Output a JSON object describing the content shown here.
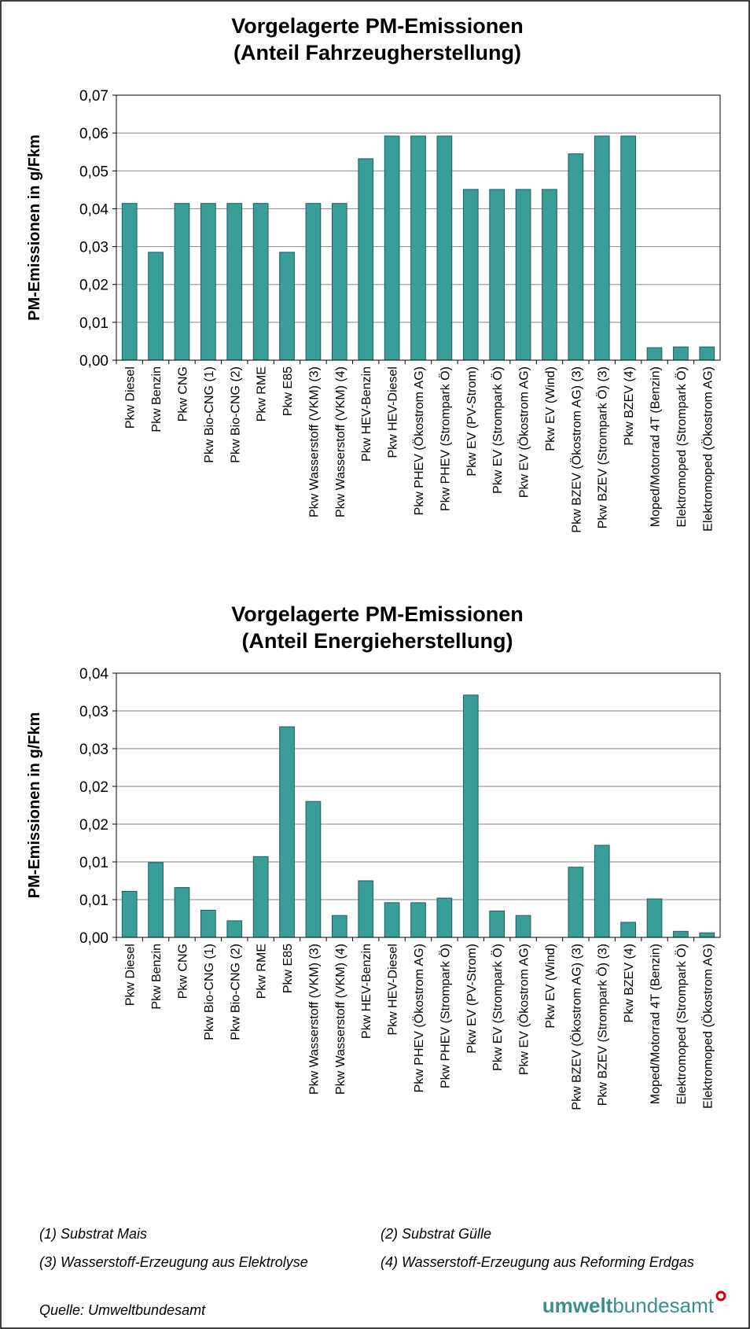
{
  "chart_data": [
    {
      "type": "bar",
      "title": "Vorgelagerte PM-Emissionen",
      "subtitle": "(Anteil Fahrzeugherstellung)",
      "y_label": "PM-Emissionen in g/Fkm",
      "color": "#3a9e98",
      "grid": true,
      "categories": [
        "Pkw Diesel",
        "Pkw Benzin",
        "Pkw CNG",
        "Pkw Bio-CNG (1)",
        "Pkw Bio-CNG (2)",
        "Pkw RME",
        "Pkw E85",
        "Pkw Wasserstoff (VKM) (3)",
        "Pkw Wasserstoff (VKM) (4)",
        "Pkw HEV-Benzin",
        "Pkw HEV-Diesel",
        "Pkw PHEV (Ökostrom AG)",
        "Pkw PHEV (Strompark Ö)",
        "Pkw EV (PV-Strom)",
        "Pkw EV (Strompark Ö)",
        "Pkw EV (Ökostrom AG)",
        "Pkw EV (Wind)",
        "Pkw BZEV (Ökostrom AG) (3)",
        "Pkw BZEV (Strompark Ö) (3)",
        "Pkw BZEV (4)",
        "Moped/Motorrad 4T (Benzin)",
        "Elektromoped (Strompark Ö)",
        "Elektromoped (Ökostrom AG)"
      ],
      "values": [
        0.0414,
        0.0285,
        0.0414,
        0.0414,
        0.0414,
        0.0414,
        0.0285,
        0.0414,
        0.0414,
        0.0532,
        0.0592,
        0.0592,
        0.0592,
        0.0451,
        0.0451,
        0.0451,
        0.0451,
        0.0545,
        0.0592,
        0.0592,
        0.0033,
        0.0035,
        0.0035
      ],
      "ylim": [
        0,
        0.07
      ],
      "yticks": [
        {
          "value": 0,
          "label": "0,00"
        },
        {
          "value": 0.01,
          "label": "0,01"
        },
        {
          "value": 0.02,
          "label": "0,02"
        },
        {
          "value": 0.03,
          "label": "0,03"
        },
        {
          "value": 0.04,
          "label": "0,04"
        },
        {
          "value": 0.05,
          "label": "0,05"
        },
        {
          "value": 0.06,
          "label": "0,06"
        },
        {
          "value": 0.07,
          "label": "0,07"
        }
      ]
    },
    {
      "type": "bar",
      "title": "Vorgelagerte PM-Emissionen",
      "subtitle": "(Anteil Energieherstellung)",
      "y_label": "PM-Emissionen in g/Fkm",
      "color": "#3a9e98",
      "grid": true,
      "categories": [
        "Pkw Diesel",
        "Pkw Benzin",
        "Pkw CNG",
        "Pkw Bio-CNG (1)",
        "Pkw Bio-CNG (2)",
        "Pkw RME",
        "Pkw E85",
        "Pkw Wasserstoff (VKM) (3)",
        "Pkw Wasserstoff (VKM) (4)",
        "Pkw HEV-Benzin",
        "Pkw HEV-Diesel",
        "Pkw PHEV (Ökostrom AG)",
        "Pkw PHEV (Strompark Ö)",
        "Pkw EV (PV-Strom)",
        "Pkw EV (Strompark Ö)",
        "Pkw EV (Ökostrom AG)",
        "Pkw EV (Wind)",
        "Pkw BZEV (Ökostrom AG) (3)",
        "Pkw BZEV (Strompark Ö) (3)",
        "Pkw BZEV (4)",
        "Moped/Motorrad 4T (Benzin)",
        "Elektromoped (Strompark Ö)",
        "Elektromoped (Ökostrom AG)"
      ],
      "values": [
        0.0061,
        0.0099,
        0.0066,
        0.0036,
        0.0022,
        0.0107,
        0.0279,
        0.018,
        0.0029,
        0.0075,
        0.0046,
        0.0046,
        0.0052,
        0.0321,
        0.0035,
        0.0029,
        0,
        0.0093,
        0.0122,
        0.002,
        0.0051,
        0.0008,
        0.0006
      ],
      "ylim": [
        0,
        0.035
      ],
      "yticks": [
        {
          "value": 0,
          "label": "0,00"
        },
        {
          "value": 0.005,
          "label": "0,01"
        },
        {
          "value": 0.01,
          "label": "0,01"
        },
        {
          "value": 0.015,
          "label": "0,02"
        },
        {
          "value": 0.02,
          "label": "0,02"
        },
        {
          "value": 0.025,
          "label": "0,03"
        },
        {
          "value": 0.03,
          "label": "0,03"
        },
        {
          "value": 0.035,
          "label": "0,04"
        }
      ]
    }
  ],
  "notes": [
    "(1) Substrat Mais",
    "(2) Substrat Gülle",
    "(3) Wasserstoff-Erzeugung aus Elektrolyse",
    "(4) Wasserstoff-Erzeugung aus Reforming Erdgas"
  ],
  "source": "Quelle: Umweltbundesamt",
  "logo": {
    "bold": "umwelt",
    "regular": "bundesamt"
  }
}
